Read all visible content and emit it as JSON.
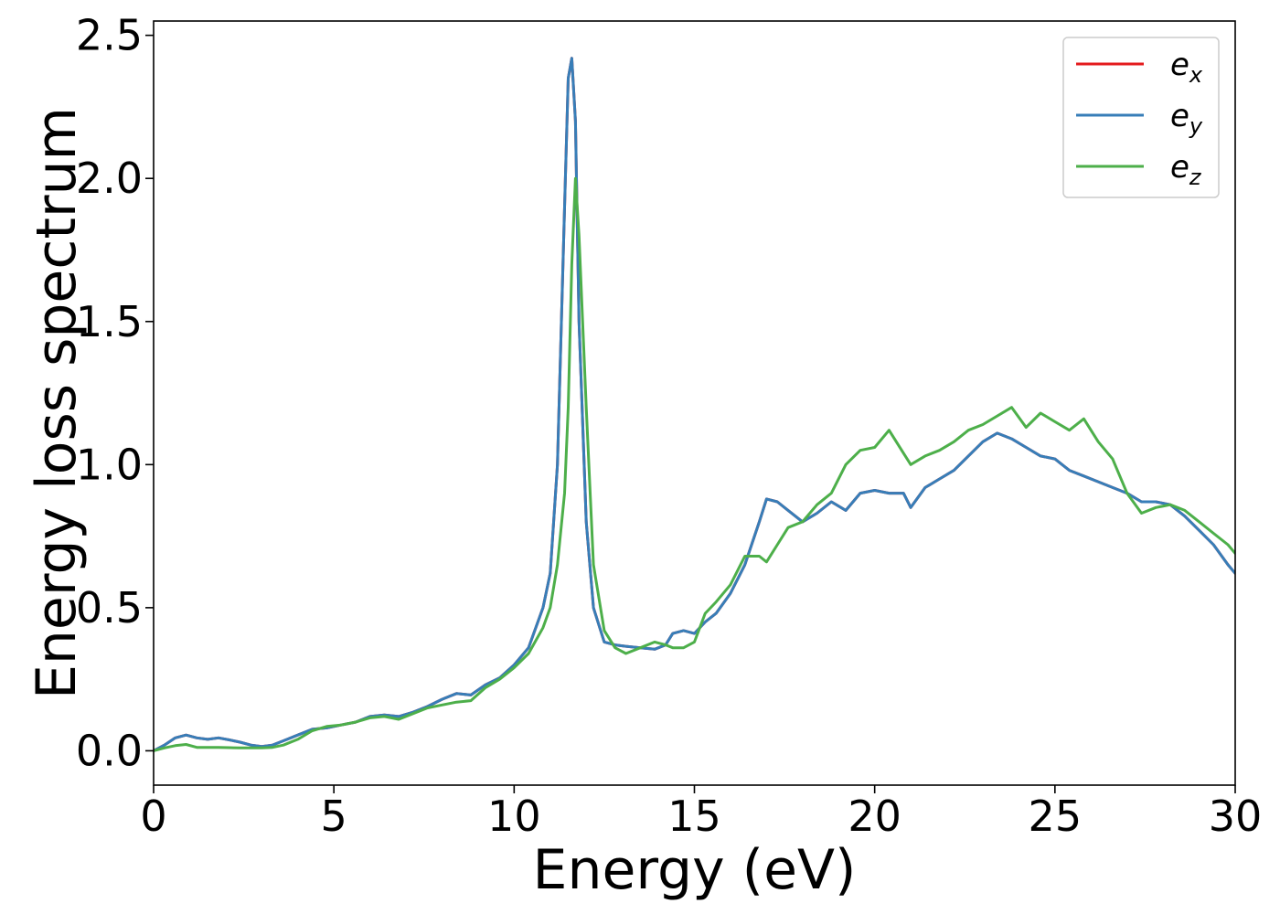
{
  "chart_data": {
    "type": "line",
    "title": "",
    "xlabel": "Energy (eV)",
    "ylabel": "Energy loss spectrum",
    "xlim": [
      0,
      30
    ],
    "ylim": [
      -0.12,
      2.55
    ],
    "xticks": [
      0,
      5,
      10,
      15,
      20,
      25,
      30
    ],
    "xtick_labels": [
      "0",
      "5",
      "10",
      "15",
      "20",
      "25",
      "30"
    ],
    "yticks": [
      0.0,
      0.5,
      1.0,
      1.5,
      2.0,
      2.5
    ],
    "ytick_labels": [
      "0.0",
      "0.5",
      "1.0",
      "1.5",
      "2.0",
      "2.5"
    ],
    "grid": false,
    "legend_position": "top-right",
    "series": [
      {
        "name": "e_x",
        "legend_base": "e",
        "legend_sub": "x",
        "color": "#e41a1c",
        "x": [
          0,
          0.3,
          0.6,
          0.9,
          1.2,
          1.5,
          1.8,
          2.1,
          2.4,
          2.7,
          3.0,
          3.3,
          3.6,
          4.0,
          4.4,
          4.8,
          5.2,
          5.6,
          6.0,
          6.4,
          6.8,
          7.2,
          7.6,
          8.0,
          8.4,
          8.8,
          9.2,
          9.6,
          10.0,
          10.4,
          10.8,
          11.0,
          11.2,
          11.4,
          11.5,
          11.6,
          11.7,
          11.8,
          12.0,
          12.2,
          12.5,
          12.8,
          13.1,
          13.5,
          13.9,
          14.2,
          14.4,
          14.7,
          15.0,
          15.3,
          15.6,
          16.0,
          16.4,
          16.8,
          17.0,
          17.3,
          17.6,
          18.0,
          18.4,
          18.8,
          19.2,
          19.6,
          20.0,
          20.4,
          20.8,
          21.0,
          21.4,
          21.8,
          22.2,
          22.6,
          23.0,
          23.4,
          23.8,
          24.2,
          24.6,
          25.0,
          25.4,
          25.8,
          26.2,
          26.6,
          27.0,
          27.4,
          27.8,
          28.2,
          28.6,
          29.0,
          29.4,
          29.8,
          30.0
        ],
        "y": [
          0.0,
          0.02,
          0.045,
          0.055,
          0.045,
          0.04,
          0.045,
          0.038,
          0.03,
          0.02,
          0.015,
          0.02,
          0.035,
          0.055,
          0.075,
          0.08,
          0.09,
          0.1,
          0.12,
          0.125,
          0.12,
          0.135,
          0.155,
          0.18,
          0.2,
          0.195,
          0.23,
          0.255,
          0.3,
          0.36,
          0.5,
          0.62,
          1.0,
          1.9,
          2.35,
          2.42,
          2.2,
          1.5,
          0.8,
          0.5,
          0.38,
          0.37,
          0.365,
          0.36,
          0.355,
          0.37,
          0.41,
          0.42,
          0.41,
          0.45,
          0.48,
          0.55,
          0.65,
          0.8,
          0.88,
          0.87,
          0.84,
          0.8,
          0.83,
          0.87,
          0.84,
          0.9,
          0.91,
          0.9,
          0.9,
          0.85,
          0.92,
          0.95,
          0.98,
          1.03,
          1.08,
          1.11,
          1.09,
          1.06,
          1.03,
          1.02,
          0.98,
          0.96,
          0.94,
          0.92,
          0.9,
          0.87,
          0.87,
          0.86,
          0.82,
          0.77,
          0.72,
          0.65,
          0.62
        ]
      },
      {
        "name": "e_y",
        "legend_base": "e",
        "legend_sub": "y",
        "color": "#377eb8",
        "x": [
          0,
          0.3,
          0.6,
          0.9,
          1.2,
          1.5,
          1.8,
          2.1,
          2.4,
          2.7,
          3.0,
          3.3,
          3.6,
          4.0,
          4.4,
          4.8,
          5.2,
          5.6,
          6.0,
          6.4,
          6.8,
          7.2,
          7.6,
          8.0,
          8.4,
          8.8,
          9.2,
          9.6,
          10.0,
          10.4,
          10.8,
          11.0,
          11.2,
          11.4,
          11.5,
          11.6,
          11.7,
          11.8,
          12.0,
          12.2,
          12.5,
          12.8,
          13.1,
          13.5,
          13.9,
          14.2,
          14.4,
          14.7,
          15.0,
          15.3,
          15.6,
          16.0,
          16.4,
          16.8,
          17.0,
          17.3,
          17.6,
          18.0,
          18.4,
          18.8,
          19.2,
          19.6,
          20.0,
          20.4,
          20.8,
          21.0,
          21.4,
          21.8,
          22.2,
          22.6,
          23.0,
          23.4,
          23.8,
          24.2,
          24.6,
          25.0,
          25.4,
          25.8,
          26.2,
          26.6,
          27.0,
          27.4,
          27.8,
          28.2,
          28.6,
          29.0,
          29.4,
          29.8,
          30.0
        ],
        "y": [
          0.0,
          0.02,
          0.045,
          0.055,
          0.045,
          0.04,
          0.045,
          0.038,
          0.03,
          0.02,
          0.015,
          0.02,
          0.035,
          0.055,
          0.075,
          0.08,
          0.09,
          0.1,
          0.12,
          0.125,
          0.12,
          0.135,
          0.155,
          0.18,
          0.2,
          0.195,
          0.23,
          0.255,
          0.3,
          0.36,
          0.5,
          0.62,
          1.0,
          1.9,
          2.35,
          2.42,
          2.2,
          1.5,
          0.8,
          0.5,
          0.38,
          0.37,
          0.365,
          0.36,
          0.355,
          0.37,
          0.41,
          0.42,
          0.41,
          0.45,
          0.48,
          0.55,
          0.65,
          0.8,
          0.88,
          0.87,
          0.84,
          0.8,
          0.83,
          0.87,
          0.84,
          0.9,
          0.91,
          0.9,
          0.9,
          0.85,
          0.92,
          0.95,
          0.98,
          1.03,
          1.08,
          1.11,
          1.09,
          1.06,
          1.03,
          1.02,
          0.98,
          0.96,
          0.94,
          0.92,
          0.9,
          0.87,
          0.87,
          0.86,
          0.82,
          0.77,
          0.72,
          0.65,
          0.62
        ]
      },
      {
        "name": "e_z",
        "legend_base": "e",
        "legend_sub": "z",
        "color": "#4daf4a",
        "x": [
          0,
          0.3,
          0.6,
          0.9,
          1.2,
          1.5,
          1.8,
          2.1,
          2.4,
          2.7,
          3.0,
          3.3,
          3.6,
          4.0,
          4.4,
          4.8,
          5.2,
          5.6,
          6.0,
          6.4,
          6.8,
          7.2,
          7.6,
          8.0,
          8.4,
          8.8,
          9.2,
          9.6,
          10.0,
          10.4,
          10.8,
          11.0,
          11.2,
          11.4,
          11.5,
          11.6,
          11.7,
          11.8,
          12.0,
          12.2,
          12.5,
          12.8,
          13.1,
          13.5,
          13.9,
          14.2,
          14.4,
          14.7,
          15.0,
          15.3,
          15.6,
          16.0,
          16.4,
          16.8,
          17.0,
          17.3,
          17.6,
          18.0,
          18.4,
          18.8,
          19.2,
          19.6,
          20.0,
          20.4,
          20.8,
          21.0,
          21.4,
          21.8,
          22.2,
          22.6,
          23.0,
          23.4,
          23.8,
          24.2,
          24.6,
          25.0,
          25.4,
          25.8,
          26.2,
          26.6,
          27.0,
          27.4,
          27.8,
          28.2,
          28.6,
          29.0,
          29.4,
          29.8,
          30.0
        ],
        "y": [
          0.0,
          0.01,
          0.018,
          0.022,
          0.012,
          0.012,
          0.012,
          0.011,
          0.01,
          0.01,
          0.01,
          0.012,
          0.02,
          0.04,
          0.07,
          0.085,
          0.09,
          0.1,
          0.115,
          0.12,
          0.11,
          0.13,
          0.15,
          0.16,
          0.17,
          0.175,
          0.22,
          0.25,
          0.29,
          0.34,
          0.43,
          0.5,
          0.65,
          0.9,
          1.2,
          1.7,
          2.0,
          1.8,
          1.2,
          0.65,
          0.42,
          0.36,
          0.34,
          0.36,
          0.38,
          0.37,
          0.36,
          0.36,
          0.38,
          0.48,
          0.52,
          0.58,
          0.68,
          0.68,
          0.66,
          0.72,
          0.78,
          0.8,
          0.86,
          0.9,
          1.0,
          1.05,
          1.06,
          1.12,
          1.04,
          1.0,
          1.03,
          1.05,
          1.08,
          1.12,
          1.14,
          1.17,
          1.2,
          1.13,
          1.18,
          1.15,
          1.12,
          1.16,
          1.08,
          1.02,
          0.9,
          0.83,
          0.85,
          0.86,
          0.84,
          0.8,
          0.76,
          0.72,
          0.69
        ]
      }
    ]
  }
}
